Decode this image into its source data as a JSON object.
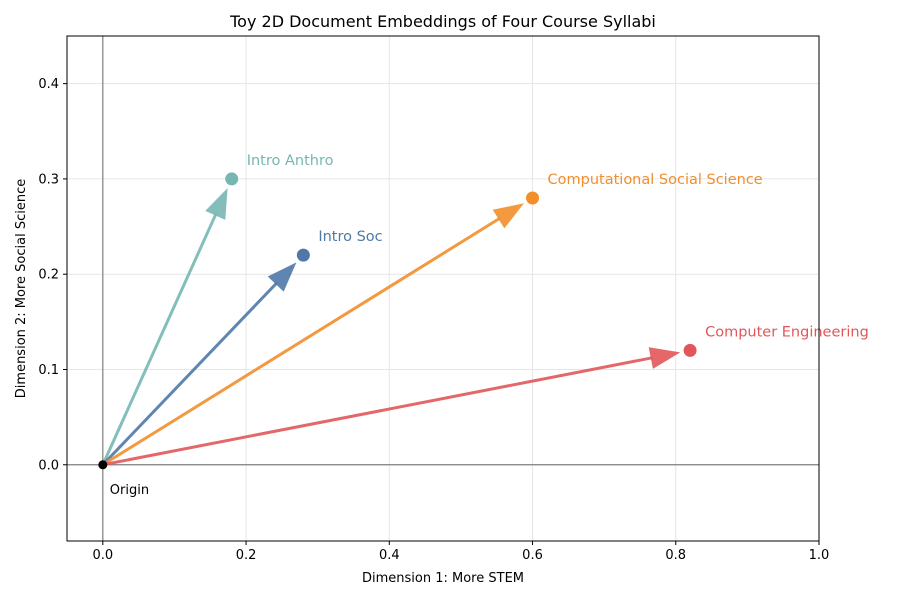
{
  "chart_data": {
    "type": "vector",
    "title": "Toy 2D Document Embeddings of Four Course Syllabi",
    "xlabel": "Dimension 1: More STEM",
    "ylabel": "Dimension 2: More Social Science",
    "xlim": [
      -0.05,
      1.0
    ],
    "ylim": [
      -0.08,
      0.45
    ],
    "xticks": [
      "0.0",
      "0.2",
      "0.4",
      "0.6",
      "0.8",
      "1.0"
    ],
    "yticks": [
      "0.0",
      "0.1",
      "0.2",
      "0.3",
      "0.4"
    ],
    "grid": true,
    "origin": {
      "label": "Origin",
      "x": 0,
      "y": 0
    },
    "series": [
      {
        "name": "Intro Anthro",
        "x": 0.18,
        "y": 0.3,
        "color": "#76b7b2"
      },
      {
        "name": "Intro Soc",
        "x": 0.28,
        "y": 0.22,
        "color": "#4e79a7"
      },
      {
        "name": "Computational Social Science",
        "x": 0.6,
        "y": 0.28,
        "color": "#f28e2b"
      },
      {
        "name": "Computer Engineering",
        "x": 0.82,
        "y": 0.12,
        "color": "#e15759"
      }
    ]
  }
}
